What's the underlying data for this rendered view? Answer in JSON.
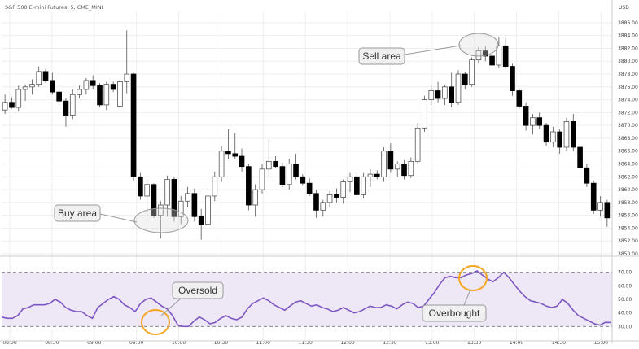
{
  "chart_data": [
    {
      "type": "candlestick",
      "symbol": "S&P 500 E-mini Futures, 5, CME_MINI",
      "currency": "USD",
      "ylim": [
        3850,
        3887
      ],
      "y_ticks": [
        "3886.00",
        "3884.00",
        "3882.00",
        "3880.00",
        "3878.00",
        "3876.00",
        "3874.00",
        "3872.00",
        "3870.00",
        "3868.00",
        "3866.00",
        "3864.00",
        "3862.00",
        "3860.00",
        "3858.00",
        "3856.00",
        "3854.00",
        "3852.00",
        "3850.00"
      ],
      "x_ticks": [
        "08:00",
        "08:30",
        "09:00",
        "09:30",
        "10:00",
        "10:30",
        "11:00",
        "11:30",
        "12:00",
        "12:30",
        "13:00",
        "13:30",
        "14:00",
        "14:30",
        "15:00"
      ],
      "candles": [
        {
          "o": 3872.4,
          "h": 3874.8,
          "l": 3871.8,
          "c": 3873.6
        },
        {
          "o": 3873.6,
          "h": 3874.4,
          "l": 3872.6,
          "c": 3872.8
        },
        {
          "o": 3872.8,
          "h": 3876.2,
          "l": 3872.2,
          "c": 3875.6
        },
        {
          "o": 3875.6,
          "h": 3876.4,
          "l": 3873.8,
          "c": 3876.0
        },
        {
          "o": 3876.0,
          "h": 3877.2,
          "l": 3874.8,
          "c": 3876.4
        },
        {
          "o": 3876.4,
          "h": 3879.2,
          "l": 3876.0,
          "c": 3878.4
        },
        {
          "o": 3878.4,
          "h": 3878.8,
          "l": 3876.6,
          "c": 3877.0
        },
        {
          "o": 3877.0,
          "h": 3878.2,
          "l": 3874.8,
          "c": 3875.2
        },
        {
          "o": 3875.2,
          "h": 3875.8,
          "l": 3873.2,
          "c": 3873.8
        },
        {
          "o": 3873.8,
          "h": 3874.2,
          "l": 3869.8,
          "c": 3871.6
        },
        {
          "o": 3871.6,
          "h": 3875.6,
          "l": 3871.0,
          "c": 3874.8
        },
        {
          "o": 3874.8,
          "h": 3876.2,
          "l": 3874.2,
          "c": 3875.6
        },
        {
          "o": 3875.6,
          "h": 3877.4,
          "l": 3874.8,
          "c": 3877.0
        },
        {
          "o": 3877.0,
          "h": 3877.8,
          "l": 3875.6,
          "c": 3876.2
        },
        {
          "o": 3876.2,
          "h": 3876.6,
          "l": 3872.8,
          "c": 3873.2
        },
        {
          "o": 3873.2,
          "h": 3876.8,
          "l": 3872.4,
          "c": 3876.4
        },
        {
          "o": 3876.4,
          "h": 3876.8,
          "l": 3875.2,
          "c": 3875.6
        },
        {
          "o": 3873.0,
          "h": 3877.2,
          "l": 3872.6,
          "c": 3876.8
        },
        {
          "o": 3876.8,
          "h": 3884.8,
          "l": 3875.0,
          "c": 3878.0
        },
        {
          "o": 3878.0,
          "h": 3878.2,
          "l": 3861.4,
          "c": 3862.0
        },
        {
          "o": 3862.0,
          "h": 3862.6,
          "l": 3858.4,
          "c": 3859.0
        },
        {
          "o": 3859.0,
          "h": 3861.6,
          "l": 3855.2,
          "c": 3860.8
        },
        {
          "o": 3860.8,
          "h": 3861.0,
          "l": 3855.6,
          "c": 3856.0
        },
        {
          "o": 3856.0,
          "h": 3858.2,
          "l": 3852.4,
          "c": 3857.6
        },
        {
          "o": 3857.6,
          "h": 3862.2,
          "l": 3855.8,
          "c": 3861.6
        },
        {
          "o": 3861.6,
          "h": 3862.0,
          "l": 3855.0,
          "c": 3855.8
        },
        {
          "o": 3855.8,
          "h": 3859.0,
          "l": 3854.6,
          "c": 3858.2
        },
        {
          "o": 3858.2,
          "h": 3860.4,
          "l": 3857.2,
          "c": 3859.4
        },
        {
          "o": 3859.4,
          "h": 3860.2,
          "l": 3855.0,
          "c": 3855.8
        },
        {
          "o": 3855.8,
          "h": 3857.0,
          "l": 3852.2,
          "c": 3854.6
        },
        {
          "o": 3854.6,
          "h": 3860.2,
          "l": 3854.2,
          "c": 3859.0
        },
        {
          "o": 3859.0,
          "h": 3862.8,
          "l": 3858.2,
          "c": 3862.0
        },
        {
          "o": 3862.0,
          "h": 3866.8,
          "l": 3861.2,
          "c": 3866.0
        },
        {
          "o": 3866.0,
          "h": 3869.4,
          "l": 3864.8,
          "c": 3865.6
        },
        {
          "o": 3865.6,
          "h": 3868.8,
          "l": 3864.8,
          "c": 3865.2
        },
        {
          "o": 3865.2,
          "h": 3866.4,
          "l": 3862.8,
          "c": 3863.6
        },
        {
          "o": 3863.6,
          "h": 3864.0,
          "l": 3856.8,
          "c": 3857.6
        },
        {
          "o": 3857.6,
          "h": 3860.8,
          "l": 3855.8,
          "c": 3860.0
        },
        {
          "o": 3860.0,
          "h": 3864.0,
          "l": 3859.4,
          "c": 3863.2
        },
        {
          "o": 3863.2,
          "h": 3867.8,
          "l": 3862.0,
          "c": 3864.4
        },
        {
          "o": 3864.4,
          "h": 3865.2,
          "l": 3863.4,
          "c": 3863.6
        },
        {
          "o": 3863.6,
          "h": 3864.2,
          "l": 3860.4,
          "c": 3860.8
        },
        {
          "o": 3860.8,
          "h": 3864.8,
          "l": 3860.0,
          "c": 3864.0
        },
        {
          "o": 3864.0,
          "h": 3865.6,
          "l": 3861.6,
          "c": 3862.0
        },
        {
          "o": 3862.0,
          "h": 3862.4,
          "l": 3860.6,
          "c": 3861.0
        },
        {
          "o": 3861.0,
          "h": 3861.8,
          "l": 3859.0,
          "c": 3859.4
        },
        {
          "o": 3859.4,
          "h": 3860.0,
          "l": 3855.6,
          "c": 3856.8
        },
        {
          "o": 3856.8,
          "h": 3858.4,
          "l": 3855.8,
          "c": 3858.0
        },
        {
          "o": 3858.0,
          "h": 3859.8,
          "l": 3857.2,
          "c": 3859.2
        },
        {
          "o": 3859.2,
          "h": 3860.2,
          "l": 3858.0,
          "c": 3858.8
        },
        {
          "o": 3858.8,
          "h": 3861.6,
          "l": 3857.8,
          "c": 3861.2
        },
        {
          "o": 3861.2,
          "h": 3862.6,
          "l": 3859.6,
          "c": 3862.0
        },
        {
          "o": 3862.0,
          "h": 3862.8,
          "l": 3858.8,
          "c": 3859.2
        },
        {
          "o": 3859.2,
          "h": 3862.6,
          "l": 3858.6,
          "c": 3862.0
        },
        {
          "o": 3862.0,
          "h": 3863.2,
          "l": 3860.4,
          "c": 3862.4
        },
        {
          "o": 3862.4,
          "h": 3863.0,
          "l": 3861.6,
          "c": 3862.0
        },
        {
          "o": 3862.0,
          "h": 3866.6,
          "l": 3861.2,
          "c": 3866.0
        },
        {
          "o": 3866.0,
          "h": 3867.2,
          "l": 3862.6,
          "c": 3863.2
        },
        {
          "o": 3863.2,
          "h": 3864.4,
          "l": 3862.0,
          "c": 3864.0
        },
        {
          "o": 3864.0,
          "h": 3864.6,
          "l": 3861.6,
          "c": 3862.2
        },
        {
          "o": 3862.2,
          "h": 3865.0,
          "l": 3861.8,
          "c": 3864.4
        },
        {
          "o": 3864.4,
          "h": 3870.4,
          "l": 3864.0,
          "c": 3869.6
        },
        {
          "o": 3869.6,
          "h": 3874.6,
          "l": 3869.0,
          "c": 3874.0
        },
        {
          "o": 3874.0,
          "h": 3876.2,
          "l": 3873.2,
          "c": 3875.4
        },
        {
          "o": 3875.4,
          "h": 3876.8,
          "l": 3873.6,
          "c": 3874.2
        },
        {
          "o": 3874.2,
          "h": 3876.4,
          "l": 3873.2,
          "c": 3876.0
        },
        {
          "o": 3876.0,
          "h": 3878.2,
          "l": 3872.8,
          "c": 3873.6
        },
        {
          "o": 3873.6,
          "h": 3878.6,
          "l": 3873.2,
          "c": 3878.0
        },
        {
          "o": 3878.0,
          "h": 3878.4,
          "l": 3875.6,
          "c": 3876.4
        },
        {
          "o": 3876.4,
          "h": 3880.6,
          "l": 3876.0,
          "c": 3880.2
        },
        {
          "o": 3880.2,
          "h": 3882.2,
          "l": 3879.6,
          "c": 3881.6
        },
        {
          "o": 3881.6,
          "h": 3882.4,
          "l": 3880.0,
          "c": 3880.8
        },
        {
          "o": 3880.8,
          "h": 3881.6,
          "l": 3878.8,
          "c": 3879.4
        },
        {
          "o": 3879.4,
          "h": 3883.8,
          "l": 3879.0,
          "c": 3882.4
        },
        {
          "o": 3882.4,
          "h": 3883.6,
          "l": 3878.8,
          "c": 3879.2
        },
        {
          "o": 3879.2,
          "h": 3879.6,
          "l": 3874.6,
          "c": 3875.4
        },
        {
          "o": 3875.4,
          "h": 3875.8,
          "l": 3872.6,
          "c": 3873.0
        },
        {
          "o": 3873.0,
          "h": 3873.6,
          "l": 3869.2,
          "c": 3870.0
        },
        {
          "o": 3870.0,
          "h": 3871.8,
          "l": 3868.6,
          "c": 3871.2
        },
        {
          "o": 3871.2,
          "h": 3872.0,
          "l": 3869.4,
          "c": 3870.0
        },
        {
          "o": 3870.0,
          "h": 3870.4,
          "l": 3866.8,
          "c": 3867.4
        },
        {
          "o": 3867.4,
          "h": 3869.8,
          "l": 3866.6,
          "c": 3869.0
        },
        {
          "o": 3869.0,
          "h": 3869.4,
          "l": 3865.6,
          "c": 3866.6
        },
        {
          "o": 3866.6,
          "h": 3871.2,
          "l": 3866.0,
          "c": 3870.6
        },
        {
          "o": 3870.6,
          "h": 3871.8,
          "l": 3866.0,
          "c": 3866.6
        },
        {
          "o": 3866.6,
          "h": 3867.2,
          "l": 3862.8,
          "c": 3863.4
        },
        {
          "o": 3863.4,
          "h": 3864.0,
          "l": 3860.4,
          "c": 3861.0
        },
        {
          "o": 3861.0,
          "h": 3861.4,
          "l": 3856.2,
          "c": 3856.8
        },
        {
          "o": 3856.8,
          "h": 3859.0,
          "l": 3855.8,
          "c": 3858.0
        },
        {
          "o": 3858.0,
          "h": 3858.4,
          "l": 3854.2,
          "c": 3855.6
        }
      ],
      "annotations": [
        "Sell area",
        "Buy area"
      ]
    },
    {
      "type": "line",
      "ylim": [
        20,
        80
      ],
      "y_ticks": [
        "70.00",
        "60.00",
        "50.00",
        "40.00",
        "30.00"
      ],
      "bands": {
        "upper": 70,
        "lower": 30
      },
      "series": [
        {
          "values": [
            37,
            36,
            36,
            38,
            43,
            44,
            46,
            46,
            46,
            47,
            50,
            48,
            44,
            42,
            41,
            41,
            38,
            36,
            44,
            47,
            50,
            52,
            50,
            46,
            44,
            41,
            47,
            50,
            51,
            48,
            45,
            43,
            38,
            31,
            30,
            30,
            34,
            37,
            35,
            32,
            33,
            36,
            38,
            36,
            35,
            37,
            43,
            47,
            49,
            51,
            49,
            46,
            44,
            42,
            45,
            48,
            49,
            47,
            45,
            46,
            44,
            43,
            41,
            42,
            44,
            42,
            40,
            41,
            43,
            45,
            44,
            44,
            46,
            45,
            43,
            46,
            48,
            47,
            44,
            45,
            50,
            55,
            61,
            66,
            67,
            66,
            66,
            68,
            69,
            71,
            68,
            65,
            63,
            66,
            70,
            66,
            61,
            56,
            52,
            49,
            48,
            47,
            45,
            44,
            45,
            50,
            47,
            42,
            38,
            36,
            34,
            32,
            31,
            33,
            33
          ],
          "color": "#7e57c2"
        }
      ],
      "annotations": [
        "Oversold",
        "Overbought"
      ]
    }
  ],
  "colors": {
    "bull_fill": "#ffffff",
    "bear_fill": "#000000",
    "candle_line": "#555555",
    "rsi_line": "#7e57c2",
    "rsi_band": "#ede7f6",
    "highlight_circle": "#f5a623",
    "grid": "#eeeeee"
  }
}
